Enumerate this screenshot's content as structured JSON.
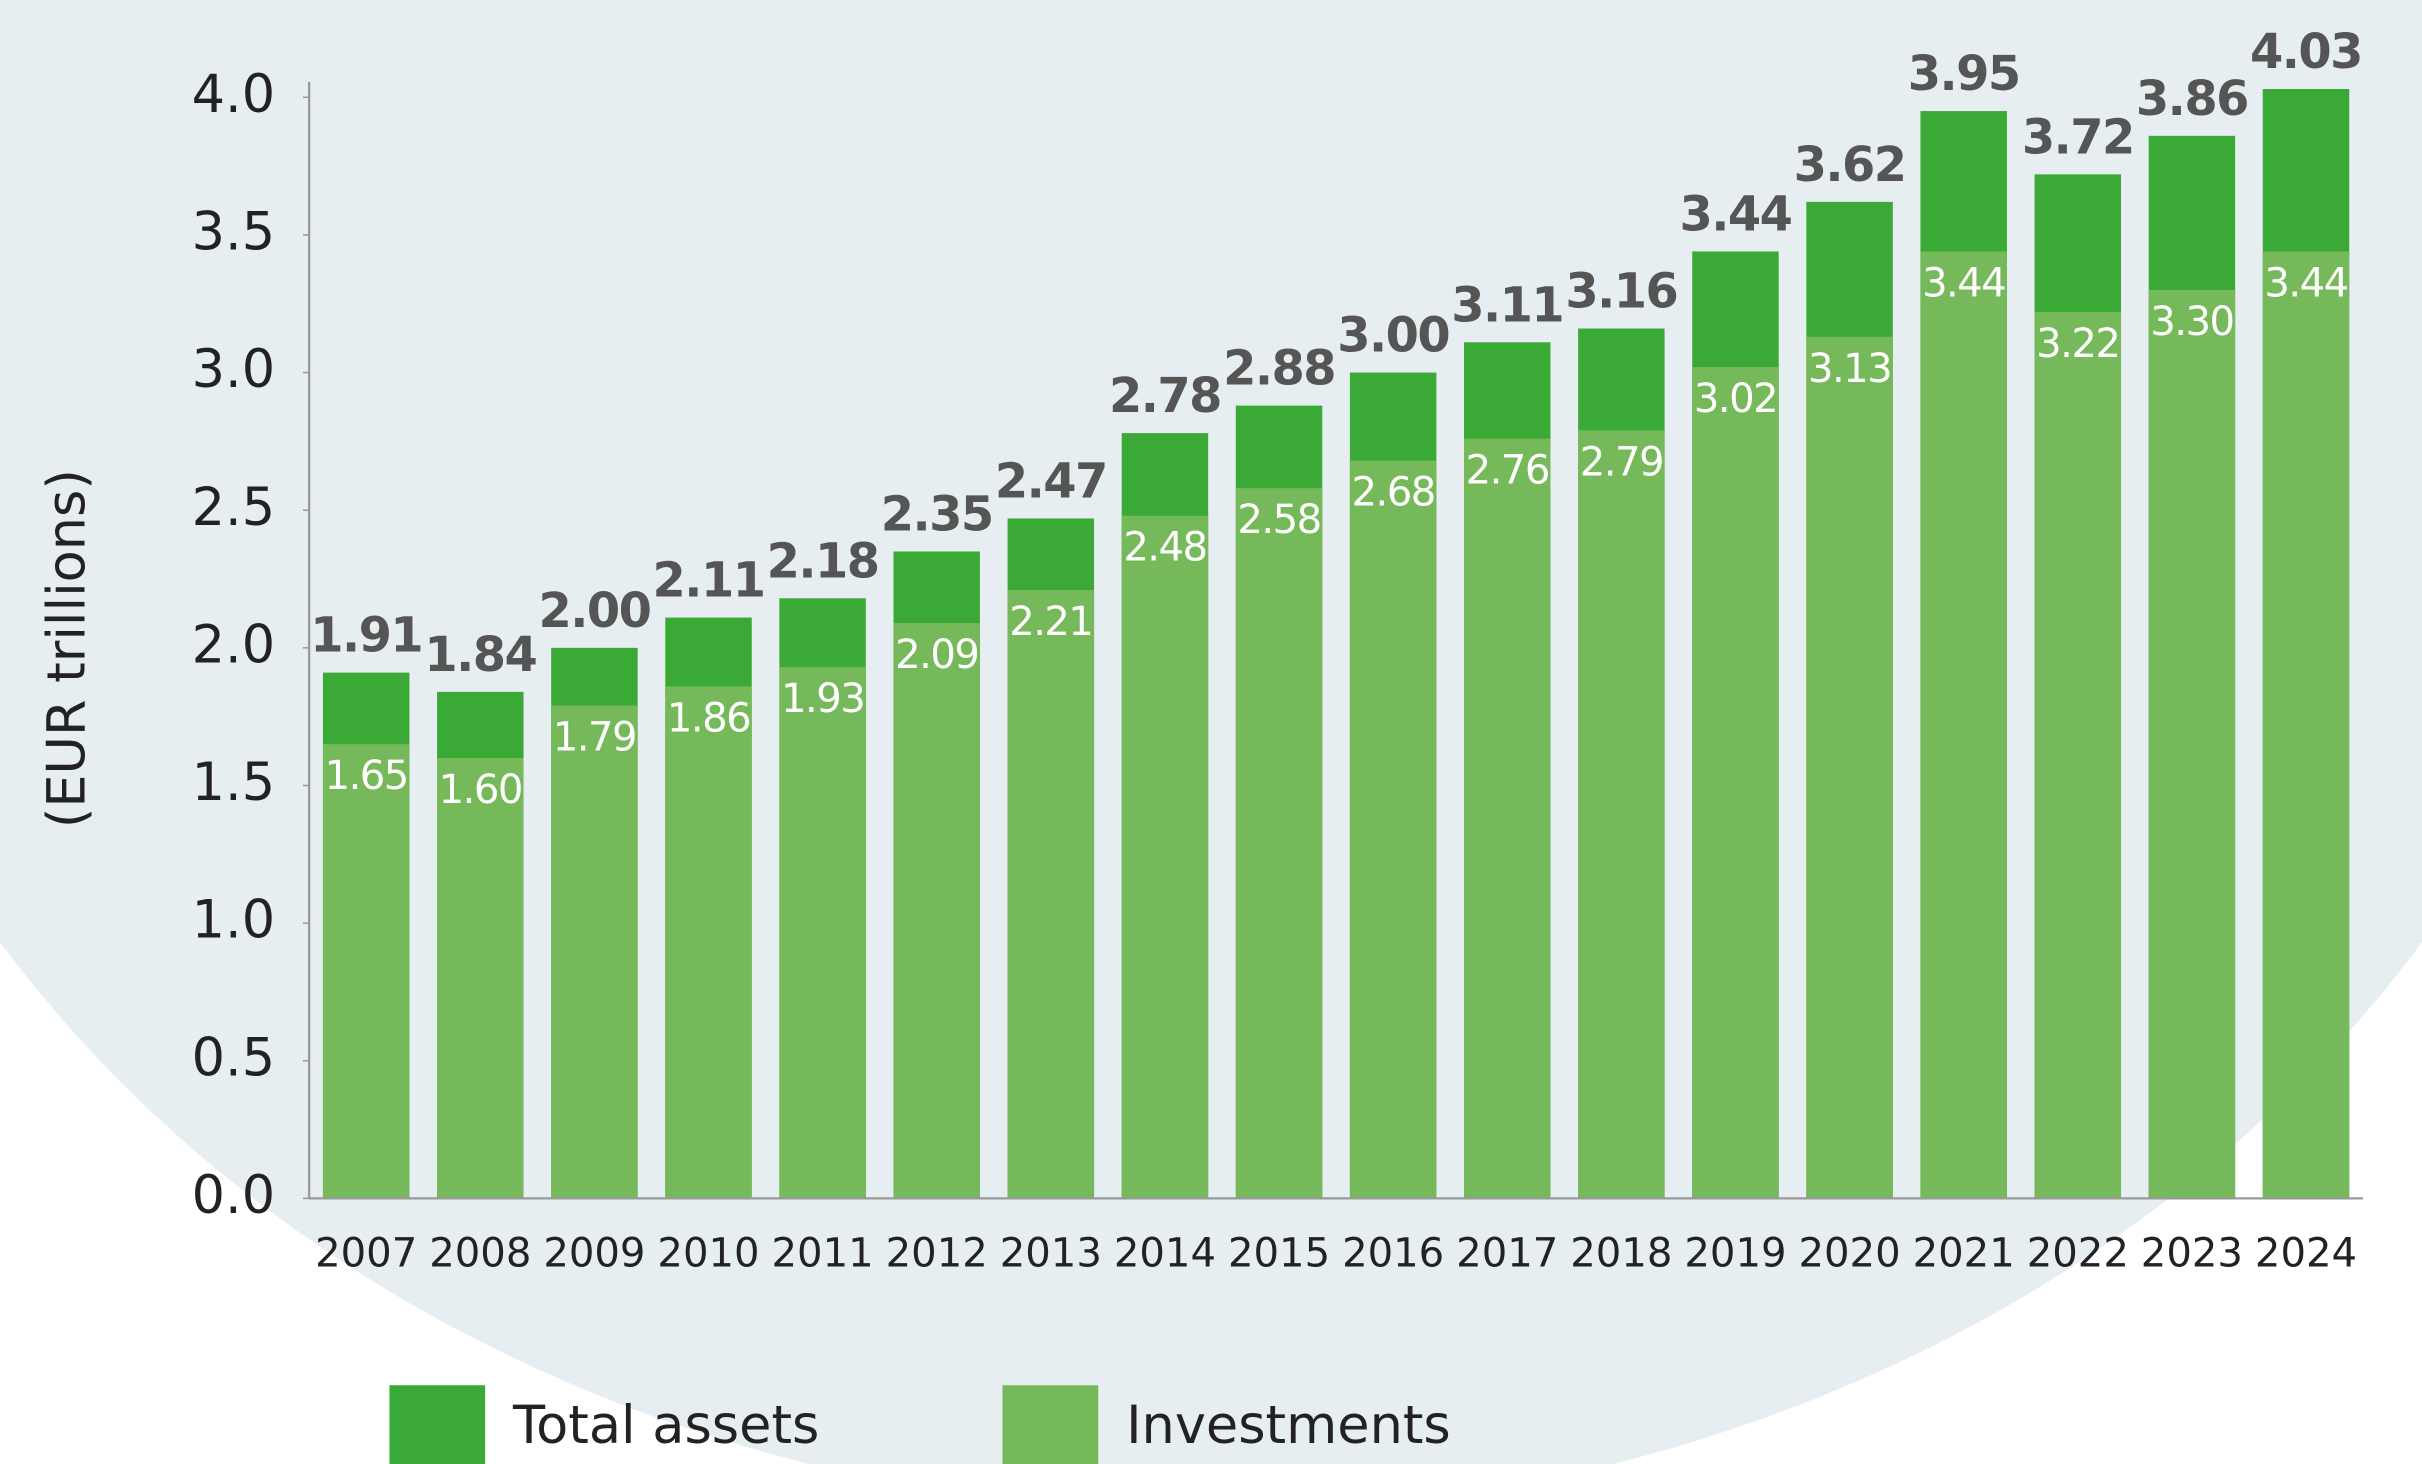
{
  "chart_data": {
    "type": "bar",
    "overlap": true,
    "y_label": "(EUR trillions)",
    "categories": [
      "2007",
      "2008",
      "2009",
      "2010",
      "2011",
      "2012",
      "2013",
      "2014",
      "2015",
      "2016",
      "2017",
      "2018",
      "2019",
      "2020",
      "2021",
      "2022",
      "2023",
      "2024"
    ],
    "series": [
      {
        "name": "Total assets",
        "color": "#3aa935",
        "values": [
          1.91,
          1.84,
          2.0,
          2.11,
          2.18,
          2.35,
          2.47,
          2.78,
          2.88,
          3.0,
          3.11,
          3.16,
          3.44,
          3.62,
          3.95,
          3.72,
          3.86,
          4.03
        ],
        "value_labels": [
          "1.91",
          "1.84",
          "2.00",
          "2.11",
          "2.18",
          "2.35",
          "2.47",
          "2.78",
          "2.88",
          "3.00",
          "3.11",
          "3.16",
          "3.44",
          "3.62",
          "3.95",
          "3.72",
          "3.86",
          "4.03"
        ]
      },
      {
        "name": "Investments",
        "color": "#76b95a",
        "values": [
          1.65,
          1.6,
          1.79,
          1.86,
          1.93,
          2.09,
          2.21,
          2.48,
          2.58,
          2.68,
          2.76,
          2.79,
          3.02,
          3.13,
          3.44,
          3.22,
          3.3,
          3.44
        ],
        "value_labels": [
          "1.65",
          "1.60",
          "1.79",
          "1.86",
          "1.93",
          "2.09",
          "2.21",
          "2.48",
          "2.58",
          "2.68",
          "2.76",
          "2.79",
          "3.02",
          "3.13",
          "3.44",
          "3.22",
          "3.30",
          "3.44"
        ]
      }
    ],
    "ylim": [
      0,
      4.0
    ],
    "yticks": [
      {
        "value": 0,
        "label": "0.0"
      },
      0.5,
      {
        "value": 1,
        "label": "1.0"
      },
      1.5,
      {
        "value": 2,
        "label": "2.0"
      },
      2.5,
      {
        "value": 3,
        "label": "3.0"
      },
      3.5,
      {
        "value": 4,
        "label": "4.0"
      }
    ],
    "legend": "bottom"
  }
}
